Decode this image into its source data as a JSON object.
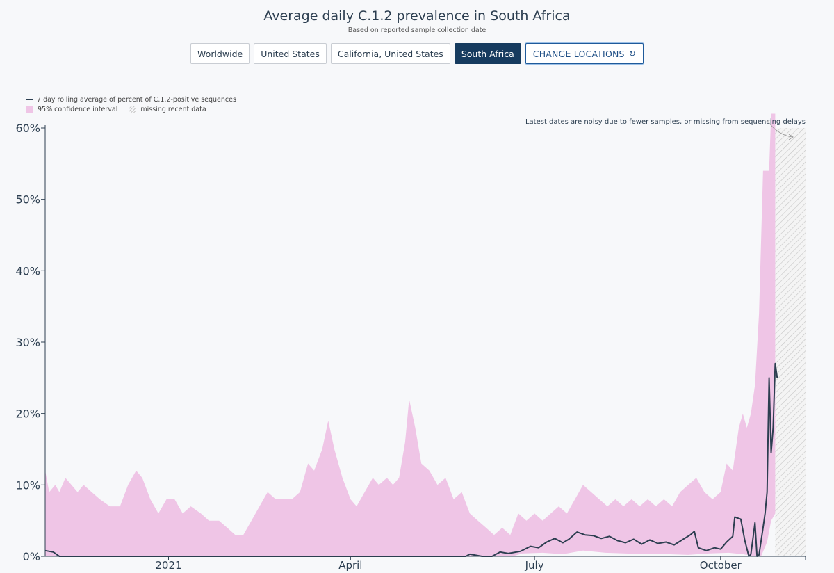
{
  "header": {
    "title": "Average daily C.1.2 prevalence in South Africa",
    "subtitle": "Based on reported sample collection date"
  },
  "locations": [
    {
      "label": "Worldwide",
      "active": false
    },
    {
      "label": "United States",
      "active": false
    },
    {
      "label": "California, United States",
      "active": false
    },
    {
      "label": "South Africa",
      "active": true
    }
  ],
  "change_locations_label": "CHANGE LOCATIONS",
  "colors": {
    "ci_fill": "#efc5e6",
    "line": "#2c3e50",
    "active_button": "#163b5f"
  },
  "chart_data": {
    "type": "area",
    "title": "Average daily C.1.2 prevalence in South Africa",
    "subtitle": "Based on reported sample collection date",
    "legend": {
      "line": "7 day rolling average of percent of C.1.2-positive sequences",
      "ci": "95% confidence interval",
      "missing": "missing recent data"
    },
    "annotation": "Latest dates are noisy due to fewer samples, or missing from sequencing delays",
    "x_ticks": [
      "2021",
      "April",
      "July",
      "October"
    ],
    "y_ticks": [
      "0%",
      "10%",
      "20%",
      "30%",
      "40%",
      "50%",
      "60%"
    ],
    "ylim": [
      0,
      60
    ],
    "xlim": [
      "2020-11-01",
      "2021-11-12"
    ],
    "missing_range": [
      "2021-10-28",
      "2021-11-12"
    ],
    "ci_upper": [
      [
        "2020-11-01",
        12
      ],
      [
        "2020-11-03",
        9
      ],
      [
        "2020-11-06",
        10
      ],
      [
        "2020-11-08",
        9
      ],
      [
        "2020-11-11",
        11
      ],
      [
        "2020-11-14",
        10
      ],
      [
        "2020-11-17",
        9
      ],
      [
        "2020-11-20",
        10
      ],
      [
        "2020-11-24",
        9
      ],
      [
        "2020-11-28",
        8
      ],
      [
        "2020-12-03",
        7
      ],
      [
        "2020-12-08",
        7
      ],
      [
        "2020-12-12",
        10
      ],
      [
        "2020-12-16",
        12
      ],
      [
        "2020-12-19",
        11
      ],
      [
        "2020-12-23",
        8
      ],
      [
        "2020-12-27",
        6
      ],
      [
        "2020-12-31",
        8
      ],
      [
        "2021-01-04",
        8
      ],
      [
        "2021-01-08",
        6
      ],
      [
        "2021-01-12",
        7
      ],
      [
        "2021-01-17",
        6
      ],
      [
        "2021-01-21",
        5
      ],
      [
        "2021-01-26",
        5
      ],
      [
        "2021-01-30",
        4
      ],
      [
        "2021-02-03",
        3
      ],
      [
        "2021-02-07",
        3
      ],
      [
        "2021-02-11",
        5
      ],
      [
        "2021-02-15",
        7
      ],
      [
        "2021-02-19",
        9
      ],
      [
        "2021-02-23",
        8
      ],
      [
        "2021-02-27",
        8
      ],
      [
        "2021-03-03",
        8
      ],
      [
        "2021-03-07",
        9
      ],
      [
        "2021-03-11",
        13
      ],
      [
        "2021-03-14",
        12
      ],
      [
        "2021-03-18",
        15
      ],
      [
        "2021-03-21",
        19
      ],
      [
        "2021-03-24",
        15
      ],
      [
        "2021-03-28",
        11
      ],
      [
        "2021-04-01",
        8
      ],
      [
        "2021-04-04",
        7
      ],
      [
        "2021-04-08",
        9
      ],
      [
        "2021-04-12",
        11
      ],
      [
        "2021-04-15",
        10
      ],
      [
        "2021-04-19",
        11
      ],
      [
        "2021-04-22",
        10
      ],
      [
        "2021-04-25",
        11
      ],
      [
        "2021-04-28",
        16
      ],
      [
        "2021-04-30",
        22
      ],
      [
        "2021-05-03",
        18
      ],
      [
        "2021-05-06",
        13
      ],
      [
        "2021-05-10",
        12
      ],
      [
        "2021-05-14",
        10
      ],
      [
        "2021-05-18",
        11
      ],
      [
        "2021-05-22",
        8
      ],
      [
        "2021-05-26",
        9
      ],
      [
        "2021-05-30",
        6
      ],
      [
        "2021-06-03",
        5
      ],
      [
        "2021-06-07",
        4
      ],
      [
        "2021-06-11",
        3
      ],
      [
        "2021-06-15",
        4
      ],
      [
        "2021-06-19",
        3
      ],
      [
        "2021-06-23",
        6
      ],
      [
        "2021-06-27",
        5
      ],
      [
        "2021-07-01",
        6
      ],
      [
        "2021-07-05",
        5
      ],
      [
        "2021-07-09",
        6
      ],
      [
        "2021-07-13",
        7
      ],
      [
        "2021-07-17",
        6
      ],
      [
        "2021-07-21",
        8
      ],
      [
        "2021-07-25",
        10
      ],
      [
        "2021-07-29",
        9
      ],
      [
        "2021-08-02",
        8
      ],
      [
        "2021-08-06",
        7
      ],
      [
        "2021-08-10",
        8
      ],
      [
        "2021-08-14",
        7
      ],
      [
        "2021-08-18",
        8
      ],
      [
        "2021-08-22",
        7
      ],
      [
        "2021-08-26",
        8
      ],
      [
        "2021-08-30",
        7
      ],
      [
        "2021-09-03",
        8
      ],
      [
        "2021-09-07",
        7
      ],
      [
        "2021-09-11",
        9
      ],
      [
        "2021-09-15",
        10
      ],
      [
        "2021-09-19",
        11
      ],
      [
        "2021-09-23",
        9
      ],
      [
        "2021-09-27",
        8
      ],
      [
        "2021-10-01",
        9
      ],
      [
        "2021-10-04",
        13
      ],
      [
        "2021-10-07",
        12
      ],
      [
        "2021-10-10",
        18
      ],
      [
        "2021-10-12",
        20
      ],
      [
        "2021-10-14",
        18
      ],
      [
        "2021-10-16",
        20
      ],
      [
        "2021-10-18",
        24
      ],
      [
        "2021-10-20",
        34
      ],
      [
        "2021-10-22",
        54
      ],
      [
        "2021-10-25",
        54
      ],
      [
        "2021-10-26",
        62
      ],
      [
        "2021-10-28",
        62
      ]
    ],
    "ci_lower": [
      [
        "2020-11-01",
        0
      ],
      [
        "2021-06-20",
        0
      ],
      [
        "2021-06-25",
        0.4
      ],
      [
        "2021-07-05",
        0.5
      ],
      [
        "2021-07-15",
        0.3
      ],
      [
        "2021-07-25",
        0.8
      ],
      [
        "2021-08-05",
        0.5
      ],
      [
        "2021-08-15",
        0.4
      ],
      [
        "2021-08-25",
        0.3
      ],
      [
        "2021-09-05",
        0.3
      ],
      [
        "2021-09-15",
        0.2
      ],
      [
        "2021-09-25",
        0.4
      ],
      [
        "2021-10-05",
        0.5
      ],
      [
        "2021-10-12",
        0.3
      ],
      [
        "2021-10-18",
        0
      ],
      [
        "2021-10-21",
        0
      ],
      [
        "2021-10-24",
        2
      ],
      [
        "2021-10-26",
        5
      ],
      [
        "2021-10-28",
        6
      ]
    ],
    "series": [
      {
        "name": "7 day rolling average of percent of C.1.2-positive sequences",
        "points": [
          [
            "2020-11-01",
            0.8
          ],
          [
            "2020-11-05",
            0.6
          ],
          [
            "2020-11-08",
            0
          ],
          [
            "2021-05-28",
            0
          ],
          [
            "2021-05-30",
            0.3
          ],
          [
            "2021-06-05",
            0
          ],
          [
            "2021-06-10",
            0
          ],
          [
            "2021-06-14",
            0.6
          ],
          [
            "2021-06-18",
            0.4
          ],
          [
            "2021-06-24",
            0.7
          ],
          [
            "2021-06-29",
            1.4
          ],
          [
            "2021-07-03",
            1.2
          ],
          [
            "2021-07-07",
            2.0
          ],
          [
            "2021-07-11",
            2.5
          ],
          [
            "2021-07-15",
            1.9
          ],
          [
            "2021-07-18",
            2.4
          ],
          [
            "2021-07-22",
            3.4
          ],
          [
            "2021-07-26",
            3.0
          ],
          [
            "2021-07-30",
            2.9
          ],
          [
            "2021-08-03",
            2.5
          ],
          [
            "2021-08-07",
            2.8
          ],
          [
            "2021-08-11",
            2.2
          ],
          [
            "2021-08-15",
            1.9
          ],
          [
            "2021-08-19",
            2.4
          ],
          [
            "2021-08-23",
            1.7
          ],
          [
            "2021-08-27",
            2.3
          ],
          [
            "2021-08-31",
            1.8
          ],
          [
            "2021-09-04",
            2.0
          ],
          [
            "2021-09-08",
            1.6
          ],
          [
            "2021-09-12",
            2.3
          ],
          [
            "2021-09-16",
            3.0
          ],
          [
            "2021-09-18",
            3.5
          ],
          [
            "2021-09-20",
            1.2
          ],
          [
            "2021-09-24",
            0.8
          ],
          [
            "2021-09-28",
            1.2
          ],
          [
            "2021-10-01",
            1.0
          ],
          [
            "2021-10-04",
            2.0
          ],
          [
            "2021-10-07",
            2.8
          ],
          [
            "2021-10-08",
            5.5
          ],
          [
            "2021-10-11",
            5.2
          ],
          [
            "2021-10-13",
            2.2
          ],
          [
            "2021-10-15",
            0
          ],
          [
            "2021-10-16",
            0.3
          ],
          [
            "2021-10-17",
            2.5
          ],
          [
            "2021-10-18",
            4.7
          ],
          [
            "2021-10-19",
            0
          ],
          [
            "2021-10-20",
            0.2
          ],
          [
            "2021-10-22",
            4.0
          ],
          [
            "2021-10-23",
            6.0
          ],
          [
            "2021-10-24",
            9.0
          ],
          [
            "2021-10-25",
            25.0
          ],
          [
            "2021-10-26",
            14.5
          ],
          [
            "2021-10-27",
            18.0
          ],
          [
            "2021-10-28",
            27.0
          ],
          [
            "2021-10-29",
            25.0
          ]
        ]
      }
    ]
  }
}
